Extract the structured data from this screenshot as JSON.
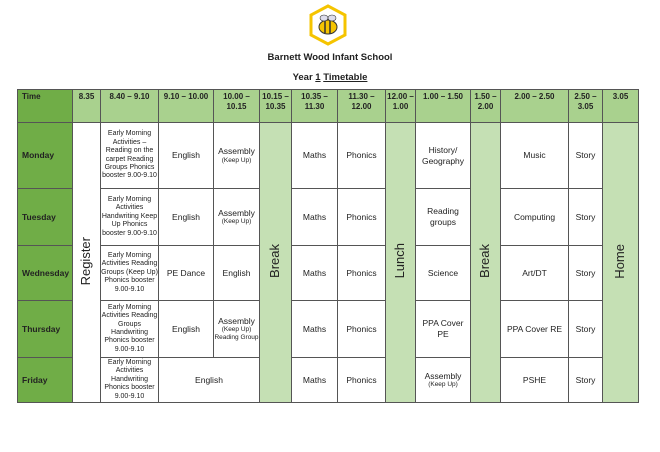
{
  "school_name": "Barnett Wood Infant School",
  "subtitle": {
    "prefix": "Year",
    "number": "1",
    "title": "Timetable"
  },
  "headers": [
    "Time",
    "8.35",
    "8.40 – 9.10",
    "9.10 – 10.00",
    "10.00 – 10.15",
    "10.15 – 10.35",
    "10.35 – 11.30",
    "11.30 – 12.00",
    "12.00 – 1.00",
    "1.00 – 1.50",
    "1.50 – 2.00",
    "2.00 – 2.50",
    "2.50 – 3.05",
    "3.05"
  ],
  "spans": {
    "register": "Register",
    "break1": "Break",
    "lunch": "Lunch",
    "break2": "Break",
    "home": "Home"
  },
  "rows": [
    {
      "day": "Monday",
      "early": "Early Morning Activities – Reading on the carpet Reading Groups Phonics booster 9.00-9.10",
      "c910": "English",
      "c1000": "Assembly",
      "c1000_note": "(Keep Up)",
      "c1035": "Maths",
      "c1130": "Phonics",
      "c100": "History/ Geography",
      "c200": "Music",
      "c250": "Story"
    },
    {
      "day": "Tuesday",
      "early": "Early Morning Activities Handwriting Keep Up Phonics booster 9.00-9.10",
      "c910": "English",
      "c1000": "Assembly",
      "c1000_note": "(Keep Up)",
      "c1035": "Maths",
      "c1130": "Phonics",
      "c100": "Reading groups",
      "c200": "Computing",
      "c250": "Story"
    },
    {
      "day": "Wednesday",
      "early": "Early Morning Activities Reading Groups (Keep Up) Phonics booster 9.00-9.10",
      "c910": "PE Dance",
      "c1000": "English",
      "c1035": "Maths",
      "c1130": "Phonics",
      "c100": "Science",
      "c200": "Art/DT",
      "c250": "Story"
    },
    {
      "day": "Thursday",
      "early": "Early Morning Activities Reading Groups Handwriting Phonics booster 9.00-9.10",
      "c910": "English",
      "c1000": "Assembly",
      "c1000_note": "(Keep Up) Reading Group",
      "c1035": "Maths",
      "c1130": "Phonics",
      "c100": "PPA Cover PE",
      "c200": "PPA Cover RE",
      "c250": "Story"
    },
    {
      "day": "Friday",
      "early": "Early Morning Activities Handwriting Phonics booster 9.00-9.10",
      "c910": "English",
      "c1035": "Maths",
      "c1130": "Phonics",
      "c100": "Assembly",
      "c100_note": "(Keep Up)",
      "c200": "PSHE",
      "c250": "Story"
    }
  ],
  "colors": {
    "day_green": "#70ad47",
    "header_green": "#a9d18e",
    "light_green": "#c5e0b4",
    "logo_yellow": "#f5c400"
  }
}
